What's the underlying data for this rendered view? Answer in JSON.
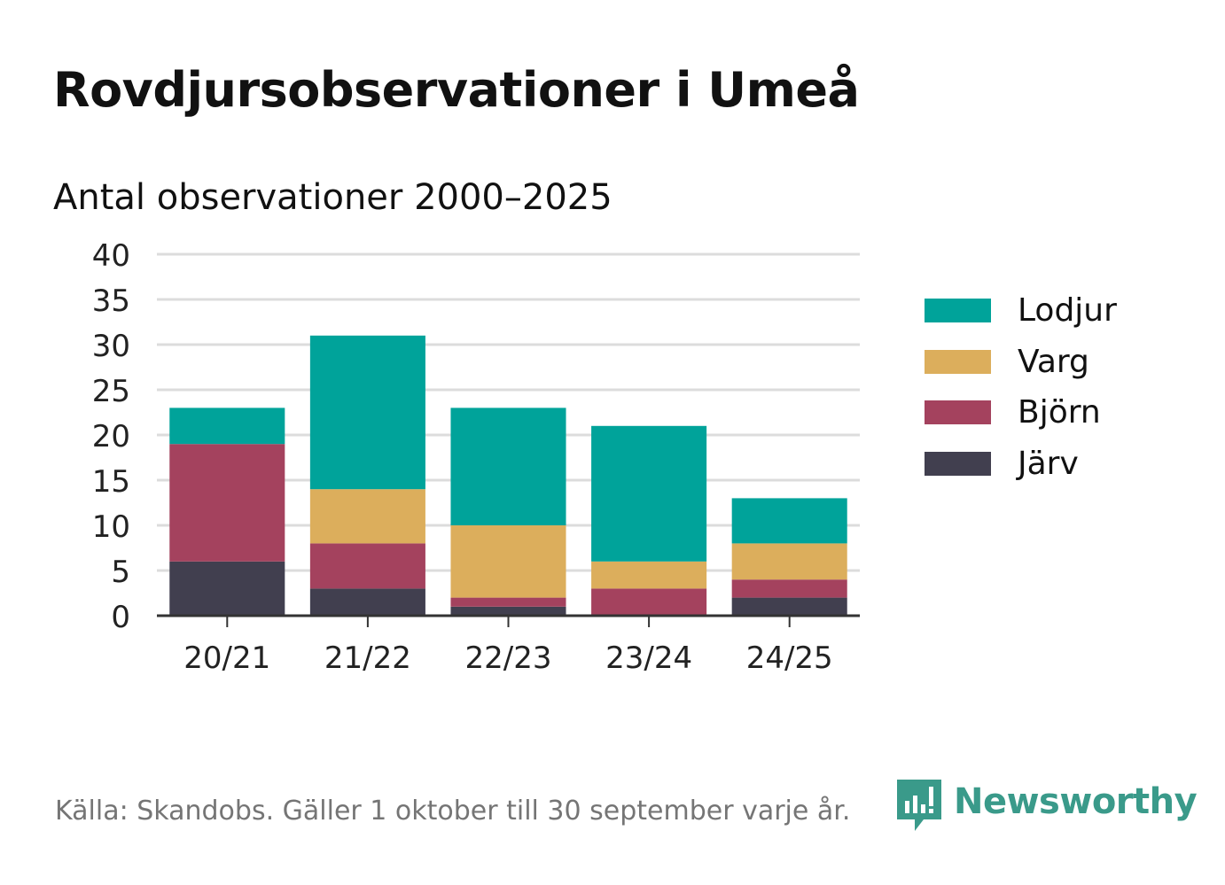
{
  "title": "Rovdjursobservationer i Umeå",
  "subtitle": "Antal observationer 2000–2025",
  "source": "Källa: Skandobs. Gäller 1 oktober till 30 september varje år.",
  "brand": {
    "name": "Newsworthy",
    "color": "#3a9a8a",
    "icon": "newsworthy-logo-icon"
  },
  "legend": [
    {
      "label": "Lodjur",
      "color": "#00a39a"
    },
    {
      "label": "Varg",
      "color": "#dcae5c"
    },
    {
      "label": "Björn",
      "color": "#a4425e"
    },
    {
      "label": "Järv",
      "color": "#413f4f"
    }
  ],
  "chart_data": {
    "type": "bar",
    "stacked": true,
    "title": "Rovdjursobservationer i Umeå",
    "subtitle": "Antal observationer 2000–2025",
    "xlabel": "",
    "ylabel": "",
    "ylim": [
      0,
      40
    ],
    "yticks": [
      0,
      5,
      10,
      15,
      20,
      25,
      30,
      35,
      40
    ],
    "grid": true,
    "legend_position": "right",
    "categories": [
      "20/21",
      "21/22",
      "22/23",
      "23/24",
      "24/25"
    ],
    "series": [
      {
        "name": "Järv",
        "color": "#413f4f",
        "values": [
          6,
          3,
          1,
          0,
          2
        ]
      },
      {
        "name": "Björn",
        "color": "#a4425e",
        "values": [
          13,
          5,
          1,
          3,
          2
        ]
      },
      {
        "name": "Varg",
        "color": "#dcae5c",
        "values": [
          0,
          6,
          8,
          3,
          4
        ]
      },
      {
        "name": "Lodjur",
        "color": "#00a39a",
        "values": [
          4,
          17,
          13,
          15,
          5
        ]
      }
    ]
  }
}
